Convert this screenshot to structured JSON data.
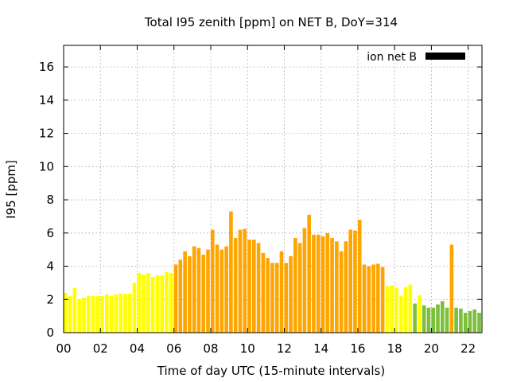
{
  "chart_data": {
    "type": "bar",
    "title": "Total I95 zenith [ppm] on NET B, DoY=314",
    "xlabel": "Time of day UTC (15-minute intervals)",
    "ylabel": "I95 [ppm]",
    "xlim": [
      0,
      22.75
    ],
    "ylim": [
      0,
      17.3
    ],
    "grid": true,
    "legend": {
      "label": "ion net B",
      "placement": "top-right",
      "color": "#000000"
    },
    "xticks": [
      {
        "value": 0,
        "label": "00"
      },
      {
        "value": 2,
        "label": "02"
      },
      {
        "value": 4,
        "label": "04"
      },
      {
        "value": 6,
        "label": "06"
      },
      {
        "value": 8,
        "label": "08"
      },
      {
        "value": 10,
        "label": "10"
      },
      {
        "value": 12,
        "label": "12"
      },
      {
        "value": 14,
        "label": "14"
      },
      {
        "value": 16,
        "label": "16"
      },
      {
        "value": 18,
        "label": "18"
      },
      {
        "value": 20,
        "label": "20"
      },
      {
        "value": 22,
        "label": "22"
      }
    ],
    "yticks": [
      {
        "value": 0,
        "label": "0"
      },
      {
        "value": 2,
        "label": "2"
      },
      {
        "value": 4,
        "label": "4"
      },
      {
        "value": 6,
        "label": "6"
      },
      {
        "value": 8,
        "label": "8"
      },
      {
        "value": 10,
        "label": "10"
      },
      {
        "value": 12,
        "label": "12"
      },
      {
        "value": 14,
        "label": "14"
      },
      {
        "value": 16,
        "label": "16"
      }
    ],
    "bar_interval_hours": 0.25,
    "bar_width_fraction": 0.8,
    "colors": {
      "yellow": "#ffff00",
      "orange": "#ffa500",
      "green": "#7cbf3c"
    },
    "values": [
      2.4,
      2.2,
      2.7,
      2.0,
      2.1,
      2.2,
      2.2,
      2.2,
      2.2,
      2.3,
      2.2,
      2.3,
      2.35,
      2.35,
      2.35,
      3.0,
      3.6,
      3.5,
      3.6,
      3.35,
      3.45,
      3.45,
      3.65,
      3.6,
      4.1,
      4.4,
      4.9,
      4.6,
      5.2,
      5.1,
      4.7,
      5.0,
      6.2,
      5.3,
      5.0,
      5.2,
      7.3,
      5.7,
      6.2,
      6.25,
      5.6,
      5.6,
      5.4,
      4.8,
      4.5,
      4.2,
      4.2,
      4.9,
      4.2,
      4.6,
      5.7,
      5.4,
      6.3,
      7.1,
      5.9,
      5.9,
      5.8,
      6.0,
      5.7,
      5.5,
      4.9,
      5.5,
      6.2,
      6.15,
      6.8,
      4.1,
      4.0,
      4.1,
      4.15,
      3.95,
      2.8,
      2.85,
      2.7,
      2.2,
      2.75,
      2.9,
      1.75,
      2.25,
      1.65,
      1.5,
      1.5,
      1.7,
      1.9,
      1.5,
      5.3,
      1.5,
      1.45,
      1.2,
      1.3,
      1.4,
      1.2
    ],
    "color_classes": [
      "yellow",
      "yellow",
      "yellow",
      "yellow",
      "yellow",
      "yellow",
      "yellow",
      "yellow",
      "yellow",
      "yellow",
      "yellow",
      "yellow",
      "yellow",
      "yellow",
      "yellow",
      "yellow",
      "yellow",
      "yellow",
      "yellow",
      "yellow",
      "yellow",
      "yellow",
      "yellow",
      "yellow",
      "orange",
      "orange",
      "orange",
      "orange",
      "orange",
      "orange",
      "orange",
      "orange",
      "orange",
      "orange",
      "orange",
      "orange",
      "orange",
      "orange",
      "orange",
      "orange",
      "orange",
      "orange",
      "orange",
      "orange",
      "orange",
      "orange",
      "orange",
      "orange",
      "orange",
      "orange",
      "orange",
      "orange",
      "orange",
      "orange",
      "orange",
      "orange",
      "orange",
      "orange",
      "orange",
      "orange",
      "orange",
      "orange",
      "orange",
      "orange",
      "orange",
      "orange",
      "orange",
      "orange",
      "orange",
      "orange",
      "yellow",
      "yellow",
      "yellow",
      "yellow",
      "yellow",
      "yellow",
      "green",
      "yellow",
      "green",
      "green",
      "green",
      "green",
      "green",
      "green",
      "orange",
      "green",
      "green",
      "green",
      "green",
      "green",
      "green"
    ]
  }
}
